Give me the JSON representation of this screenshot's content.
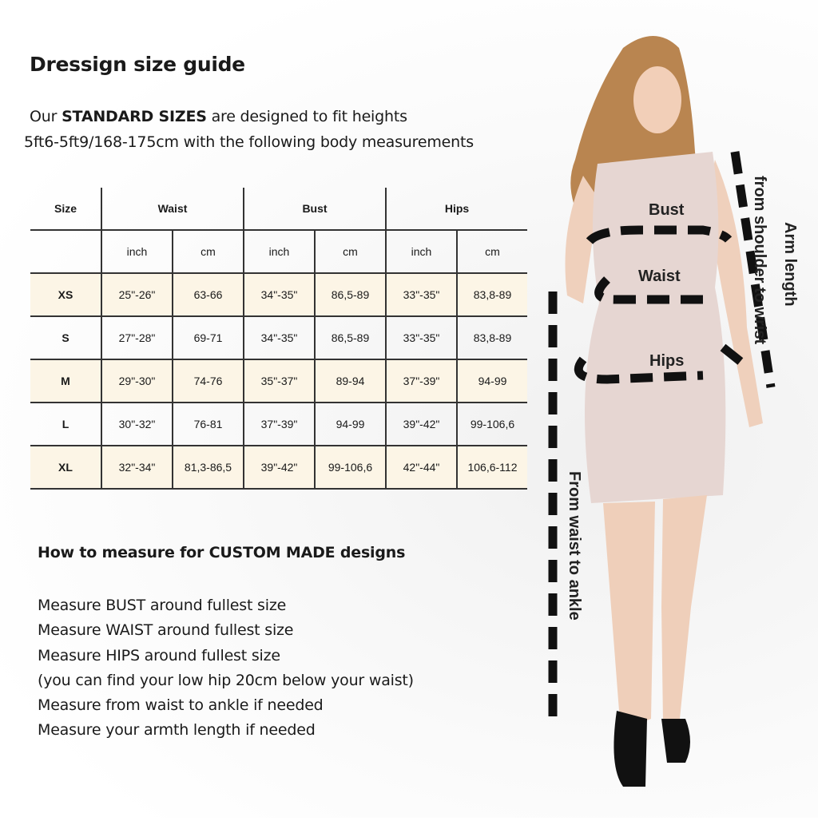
{
  "title": "Dressign size guide",
  "intro": {
    "prefix": "Our ",
    "bold": "STANDARD SIZES",
    "suffix": " are designed to fit heights",
    "line2": "5ft6-5ft9/168-175cm with the following body measurements"
  },
  "table": {
    "headers": [
      "Size",
      "Waist",
      "Bust",
      "Hips"
    ],
    "units": [
      "inch",
      "cm",
      "inch",
      "cm",
      "inch",
      "cm"
    ],
    "highlight_color": "#fcf5e6",
    "rows": [
      {
        "size": "XS",
        "values": [
          "25\"-26\"",
          "63-66",
          "34\"-35\"",
          "86,5-89",
          "33\"-35\"",
          "83,8-89"
        ],
        "highlight": true
      },
      {
        "size": "S",
        "values": [
          "27\"-28\"",
          "69-71",
          "34\"-35\"",
          "86,5-89",
          "33\"-35\"",
          "83,8-89"
        ],
        "highlight": false
      },
      {
        "size": "M",
        "values": [
          "29\"-30\"",
          "74-76",
          "35\"-37\"",
          "89-94",
          "37\"-39\"",
          "94-99"
        ],
        "highlight": true
      },
      {
        "size": "L",
        "values": [
          "30\"-32\"",
          "76-81",
          "37\"-39\"",
          "94-99",
          "39\"-42\"",
          "99-106,6"
        ],
        "highlight": false
      },
      {
        "size": "XL",
        "values": [
          "32\"-34\"",
          "81,3-86,5",
          "39\"-42\"",
          "99-106,6",
          "42\"-44\"",
          "106,6-112"
        ],
        "highlight": true
      }
    ]
  },
  "custom": {
    "heading": "How to measure for CUSTOM MADE  designs",
    "steps": [
      "Measure BUST around fullest size",
      "Measure WAIST around fullest size",
      "Measure HIPS around fullest size",
      "(you can find your low hip 20cm below your waist)",
      "Measure from waist to ankle if needed",
      "Measure your armth length if needed"
    ]
  },
  "figure": {
    "bust": "Bust",
    "waist": "Waist",
    "hips": "Hips",
    "arm1": "Arm length",
    "arm2": "from shoulder  to wrist",
    "leg": "From waist to ankle"
  }
}
